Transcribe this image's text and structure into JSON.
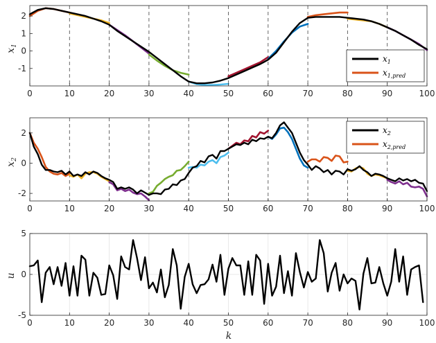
{
  "chart_data": [
    {
      "type": "line",
      "ylabel": "x",
      "ylabel_sub": "1",
      "xlim": [
        0,
        100
      ],
      "ylim": [
        -2,
        2.6
      ],
      "xticks": [
        0,
        10,
        20,
        30,
        40,
        50,
        60,
        70,
        80,
        90,
        100
      ],
      "yticks": [
        -1,
        0,
        1,
        2
      ],
      "dashed_x": [
        10,
        20,
        30,
        40,
        50,
        60,
        70,
        80,
        90
      ],
      "legend_position": "lower-right",
      "legend": [
        {
          "base": "x",
          "sub": "1",
          "color": "#000000"
        },
        {
          "base": "x",
          "sub": "1,pred",
          "color": "#D95319"
        }
      ],
      "series": [
        {
          "role": "actual",
          "color": "#000000",
          "x": [
            0,
            2,
            4,
            6,
            8,
            10,
            12,
            14,
            16,
            18,
            20,
            22,
            24,
            26,
            28,
            30,
            32,
            34,
            36,
            38,
            40,
            42,
            44,
            46,
            48,
            50,
            52,
            54,
            56,
            58,
            60,
            62,
            64,
            66,
            68,
            70,
            72,
            74,
            76,
            78,
            80,
            82,
            84,
            86,
            88,
            90,
            92,
            94,
            96,
            98,
            100
          ],
          "y": [
            2.1,
            2.35,
            2.45,
            2.4,
            2.3,
            2.2,
            2.1,
            2.0,
            1.85,
            1.7,
            1.5,
            1.15,
            0.85,
            0.55,
            0.25,
            -0.05,
            -0.4,
            -0.75,
            -1.1,
            -1.45,
            -1.75,
            -1.85,
            -1.85,
            -1.8,
            -1.7,
            -1.55,
            -1.35,
            -1.15,
            -0.95,
            -0.75,
            -0.5,
            -0.1,
            0.5,
            1.1,
            1.6,
            1.9,
            1.95,
            1.95,
            1.95,
            1.95,
            1.9,
            1.85,
            1.8,
            1.7,
            1.55,
            1.35,
            1.15,
            0.9,
            0.65,
            0.35,
            0.1
          ]
        },
        {
          "role": "pred",
          "color": "#D95319",
          "x": [
            0,
            2,
            4,
            6,
            8,
            10
          ],
          "y": [
            2.0,
            2.3,
            2.45,
            2.4,
            2.3,
            2.2
          ]
        },
        {
          "role": "pred",
          "color": "#EDB120",
          "x": [
            10,
            12,
            14,
            16,
            18,
            20
          ],
          "y": [
            2.15,
            2.05,
            1.95,
            1.85,
            1.75,
            1.6
          ]
        },
        {
          "role": "pred",
          "color": "#7E2F8E",
          "x": [
            20,
            22,
            24,
            26,
            28,
            30
          ],
          "y": [
            1.5,
            1.2,
            0.9,
            0.55,
            0.2,
            -0.15
          ]
        },
        {
          "role": "pred",
          "color": "#77AC30",
          "x": [
            30,
            32,
            34,
            36,
            38,
            40
          ],
          "y": [
            -0.2,
            -0.55,
            -0.85,
            -1.1,
            -1.25,
            -1.35
          ]
        },
        {
          "role": "pred",
          "color": "#4DBEEE",
          "x": [
            40,
            42,
            44,
            46,
            48,
            50
          ],
          "y": [
            -1.75,
            -1.9,
            -1.95,
            -1.95,
            -1.92,
            -1.88
          ]
        },
        {
          "role": "pred",
          "color": "#A2142F",
          "x": [
            50,
            52,
            54,
            56,
            58,
            60
          ],
          "y": [
            -1.45,
            -1.25,
            -1.05,
            -0.85,
            -0.65,
            -0.35
          ]
        },
        {
          "role": "pred",
          "color": "#0072BD",
          "x": [
            60,
            62,
            64,
            66,
            68,
            70
          ],
          "y": [
            -0.45,
            0.0,
            0.55,
            1.05,
            1.4,
            1.55
          ]
        },
        {
          "role": "pred",
          "color": "#D95319",
          "x": [
            70,
            72,
            74,
            76,
            78,
            80
          ],
          "y": [
            1.95,
            2.05,
            2.1,
            2.15,
            2.2,
            2.2
          ]
        },
        {
          "role": "pred",
          "color": "#EDB120",
          "x": [
            80,
            82,
            84,
            86,
            88,
            90
          ],
          "y": [
            1.85,
            1.8,
            1.75,
            1.7,
            1.55,
            1.35
          ]
        },
        {
          "role": "pred",
          "color": "#7E2F8E",
          "x": [
            90,
            92,
            94,
            96,
            98,
            100
          ],
          "y": [
            1.35,
            1.15,
            0.9,
            0.65,
            0.4,
            0.05
          ]
        }
      ]
    },
    {
      "type": "line",
      "ylabel": "x",
      "ylabel_sub": "2",
      "xlim": [
        0,
        100
      ],
      "ylim": [
        -2.5,
        3
      ],
      "xticks": [
        0,
        10,
        20,
        30,
        40,
        50,
        60,
        70,
        80,
        90,
        100
      ],
      "yticks": [
        -2,
        0,
        2
      ],
      "dashed_x": [
        10,
        20,
        30,
        40,
        50,
        60,
        70,
        80,
        90
      ],
      "legend_position": "top-right",
      "legend": [
        {
          "base": "x",
          "sub": "2",
          "color": "#000000"
        },
        {
          "base": "x",
          "sub": "2,pred",
          "color": "#D95319"
        }
      ],
      "series": [
        {
          "role": "actual",
          "color": "#000000",
          "x": [
            0,
            1,
            2,
            3,
            4,
            5,
            6,
            7,
            8,
            9,
            10,
            11,
            12,
            13,
            14,
            15,
            16,
            17,
            18,
            19,
            20,
            21,
            22,
            23,
            24,
            25,
            26,
            27,
            28,
            29,
            30,
            31,
            32,
            33,
            34,
            35,
            36,
            37,
            38,
            39,
            40,
            41,
            42,
            43,
            44,
            45,
            46,
            47,
            48,
            49,
            50,
            51,
            52,
            53,
            54,
            55,
            56,
            57,
            58,
            59,
            60,
            61,
            62,
            63,
            64,
            65,
            66,
            67,
            68,
            69,
            70,
            71,
            72,
            73,
            74,
            75,
            76,
            77,
            78,
            79,
            80,
            81,
            82,
            83,
            84,
            85,
            86,
            87,
            88,
            89,
            90,
            91,
            92,
            93,
            94,
            95,
            96,
            97,
            98,
            99,
            100
          ],
          "y": [
            2.0,
            1.1,
            0.6,
            -0.1,
            -0.45,
            -0.45,
            -0.55,
            -0.6,
            -0.5,
            -0.75,
            -0.55,
            -0.85,
            -0.75,
            -0.85,
            -0.6,
            -0.75,
            -0.55,
            -0.65,
            -0.85,
            -1.0,
            -1.1,
            -1.25,
            -1.7,
            -1.6,
            -1.7,
            -1.6,
            -1.75,
            -2.0,
            -1.8,
            -1.95,
            -2.1,
            -2.0,
            -2.0,
            -2.05,
            -1.75,
            -1.7,
            -1.4,
            -1.45,
            -1.15,
            -1.05,
            -0.65,
            -0.3,
            -0.2,
            0.15,
            0.05,
            0.45,
            0.55,
            0.3,
            0.8,
            0.8,
            0.95,
            1.1,
            1.25,
            1.2,
            1.35,
            1.25,
            1.55,
            1.45,
            1.65,
            1.6,
            1.75,
            1.65,
            2.0,
            2.5,
            2.7,
            2.35,
            2.0,
            1.35,
            0.7,
            0.2,
            -0.1,
            -0.45,
            -0.2,
            -0.35,
            -0.6,
            -0.45,
            -0.75,
            -0.5,
            -0.55,
            -0.75,
            -0.4,
            -0.5,
            -0.4,
            -0.2,
            -0.45,
            -0.6,
            -0.85,
            -0.7,
            -0.75,
            -0.85,
            -1.0,
            -1.1,
            -1.2,
            -1.0,
            -1.15,
            -1.05,
            -1.2,
            -1.1,
            -1.3,
            -1.35,
            -1.85
          ]
        },
        {
          "role": "pred",
          "color": "#D95319",
          "x": [
            0,
            1,
            2,
            3,
            4,
            5,
            6,
            7,
            8,
            9,
            10
          ],
          "y": [
            2.0,
            1.35,
            0.95,
            0.4,
            -0.25,
            -0.55,
            -0.7,
            -0.75,
            -0.65,
            -0.85,
            -0.7
          ]
        },
        {
          "role": "pred",
          "color": "#EDB120",
          "x": [
            10,
            11,
            12,
            13,
            14,
            15,
            16,
            17,
            18,
            19,
            20
          ],
          "y": [
            -0.8,
            -0.9,
            -0.75,
            -1.0,
            -0.7,
            -0.6,
            -0.6,
            -0.7,
            -0.9,
            -1.05,
            -1.2
          ]
        },
        {
          "role": "pred",
          "color": "#7E2F8E",
          "x": [
            20,
            21,
            22,
            23,
            24,
            25,
            26,
            27,
            28,
            29,
            30
          ],
          "y": [
            -1.25,
            -1.4,
            -1.8,
            -1.7,
            -1.85,
            -1.75,
            -1.95,
            -2.05,
            -2.0,
            -2.2,
            -2.45
          ]
        },
        {
          "role": "pred",
          "color": "#77AC30",
          "x": [
            30,
            31,
            32,
            33,
            34,
            35,
            36,
            37,
            38,
            39,
            40
          ],
          "y": [
            -2.0,
            -1.9,
            -1.5,
            -1.3,
            -1.05,
            -0.9,
            -0.8,
            -0.5,
            -0.45,
            -0.2,
            0.1
          ]
        },
        {
          "role": "pred",
          "color": "#4DBEEE",
          "x": [
            40,
            41,
            42,
            43,
            44,
            45,
            46,
            47,
            48,
            49,
            50
          ],
          "y": [
            -0.3,
            -0.25,
            -0.3,
            -0.1,
            -0.15,
            0.1,
            0.2,
            0.0,
            0.4,
            0.5,
            0.7
          ]
        },
        {
          "role": "pred",
          "color": "#A2142F",
          "x": [
            50,
            51,
            52,
            53,
            54,
            55,
            56,
            57,
            58,
            59,
            60
          ],
          "y": [
            0.95,
            1.15,
            1.35,
            1.25,
            1.5,
            1.45,
            1.8,
            1.7,
            2.05,
            1.95,
            2.15
          ]
        },
        {
          "role": "pred",
          "color": "#0072BD",
          "x": [
            60,
            61,
            62,
            63,
            64,
            65,
            66,
            67,
            68,
            69,
            70
          ],
          "y": [
            1.75,
            1.6,
            1.9,
            2.3,
            2.35,
            2.05,
            1.6,
            0.95,
            0.3,
            -0.15,
            -0.3
          ]
        },
        {
          "role": "pred",
          "color": "#D95319",
          "x": [
            70,
            71,
            72,
            73,
            74,
            75,
            76,
            77,
            78,
            79,
            80
          ],
          "y": [
            0.1,
            0.25,
            0.25,
            0.1,
            0.4,
            0.35,
            0.15,
            0.5,
            0.45,
            0.05,
            0.1
          ]
        },
        {
          "role": "pred",
          "color": "#EDB120",
          "x": [
            80,
            81,
            82,
            83,
            84,
            85,
            86,
            87,
            88,
            89,
            90
          ],
          "y": [
            -0.5,
            -0.55,
            -0.35,
            -0.25,
            -0.35,
            -0.7,
            -0.85,
            -0.75,
            -0.8,
            -0.9,
            -1.0
          ]
        },
        {
          "role": "pred",
          "color": "#7E2F8E",
          "x": [
            90,
            91,
            92,
            93,
            94,
            95,
            96,
            97,
            98,
            99,
            100
          ],
          "y": [
            -1.1,
            -1.25,
            -1.35,
            -1.2,
            -1.4,
            -1.3,
            -1.55,
            -1.6,
            -1.55,
            -1.7,
            -2.2
          ]
        }
      ]
    },
    {
      "type": "line",
      "ylabel": "u",
      "xlabel": "k",
      "xlim": [
        0,
        100
      ],
      "ylim": [
        -5,
        5
      ],
      "xticks": [
        0,
        10,
        20,
        30,
        40,
        50,
        60,
        70,
        80,
        90,
        100
      ],
      "yticks": [
        -5,
        0,
        5
      ],
      "grid": true,
      "series": [
        {
          "role": "actual",
          "color": "#000000",
          "x": [
            0,
            1,
            2,
            3,
            4,
            5,
            6,
            7,
            8,
            9,
            10,
            11,
            12,
            13,
            14,
            15,
            16,
            17,
            18,
            19,
            20,
            21,
            22,
            23,
            24,
            25,
            26,
            27,
            28,
            29,
            30,
            31,
            32,
            33,
            34,
            35,
            36,
            37,
            38,
            39,
            40,
            41,
            42,
            43,
            44,
            45,
            46,
            47,
            48,
            49,
            50,
            51,
            52,
            53,
            54,
            55,
            56,
            57,
            58,
            59,
            60,
            61,
            62,
            63,
            64,
            65,
            66,
            67,
            68,
            69,
            70,
            71,
            72,
            73,
            74,
            75,
            76,
            77,
            78,
            79,
            80,
            81,
            82,
            83,
            84,
            85,
            86,
            87,
            88,
            89,
            90,
            91,
            92,
            93,
            94,
            95,
            96,
            97,
            98,
            99
          ],
          "y": [
            1.0,
            1.1,
            1.7,
            -3.4,
            0.2,
            0.9,
            -1.2,
            0.9,
            -1.4,
            1.4,
            -2.6,
            1.0,
            -2.6,
            2.3,
            1.8,
            -2.6,
            0.2,
            -0.4,
            -2.5,
            -2.4,
            1.1,
            -0.1,
            -3.0,
            2.2,
            0.9,
            0.6,
            4.2,
            2.0,
            -0.7,
            2.1,
            -1.7,
            -1.0,
            -2.2,
            0.6,
            -2.8,
            -1.3,
            3.1,
            1.1,
            -4.2,
            -0.3,
            1.3,
            -1.2,
            -2.3,
            -1.3,
            -1.2,
            -0.6,
            1.2,
            -0.9,
            2.4,
            -2.5,
            0.7,
            2.0,
            1.1,
            1.1,
            -2.5,
            1.6,
            -2.5,
            2.4,
            1.7,
            -3.6,
            1.3,
            -2.6,
            -1.5,
            2.3,
            -2.3,
            0.4,
            -2.6,
            2.6,
            0.3,
            -1.6,
            0.3,
            -0.9,
            -0.5,
            4.2,
            2.6,
            -2.1,
            0.2,
            1.4,
            -2.0,
            0.0,
            -1.1,
            -0.5,
            -0.8,
            -4.3,
            0.1,
            2.0,
            -1.1,
            -1.0,
            0.9,
            -1.1,
            -2.6,
            -0.9,
            3.1,
            -0.9,
            2.2,
            -2.5,
            0.6,
            0.9,
            1.1,
            -3.4
          ]
        }
      ]
    }
  ]
}
